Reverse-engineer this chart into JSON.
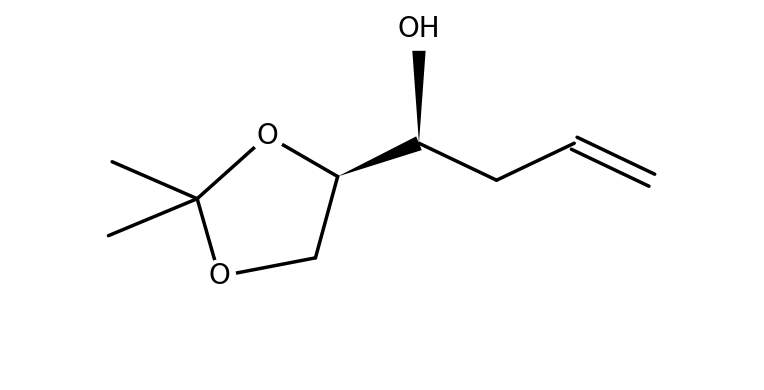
{
  "background": "#ffffff",
  "line_color": "#000000",
  "line_width": 2.5,
  "fig_width": 7.64,
  "fig_height": 3.9,
  "dpi": 100,
  "OH_label": "OH",
  "O_label": "O",
  "font_size": 20
}
